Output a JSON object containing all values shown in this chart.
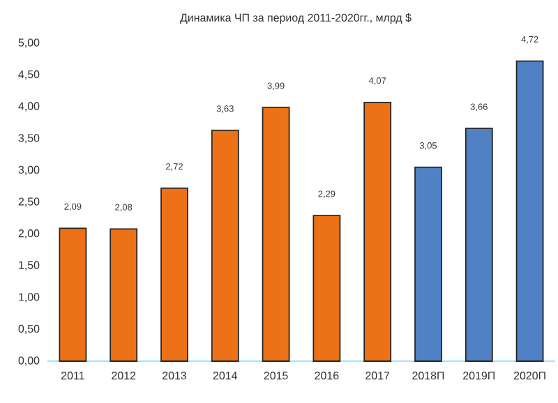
{
  "chart_data": {
    "type": "bar",
    "title": "Динамика ЧП за период 2011-2020гг., млрд $",
    "categories": [
      "2011",
      "2012",
      "2013",
      "2014",
      "2015",
      "2016",
      "2017",
      "2018П",
      "2019П",
      "2020П"
    ],
    "values": [
      2.09,
      2.08,
      2.72,
      3.63,
      3.99,
      2.29,
      4.07,
      3.05,
      3.66,
      4.72
    ],
    "value_labels": [
      "2,09",
      "2,08",
      "2,72",
      "3,63",
      "3,99",
      "2,29",
      "4,07",
      "3,05",
      "3,66",
      "4,72"
    ],
    "colors": [
      "#ed7117",
      "#ed7117",
      "#ed7117",
      "#ed7117",
      "#ed7117",
      "#ed7117",
      "#ed7117",
      "#4f81c4",
      "#4f81c4",
      "#4f81c4"
    ],
    "ylim": [
      0,
      5
    ],
    "yticks": [
      {
        "value": 0,
        "label": "0,00"
      },
      {
        "value": 0.5,
        "label": "0,50"
      },
      {
        "value": 1,
        "label": "1,00"
      },
      {
        "value": 1.5,
        "label": "1,50"
      },
      {
        "value": 2,
        "label": "2,00"
      },
      {
        "value": 2.5,
        "label": "2,50"
      },
      {
        "value": 3,
        "label": "3,00"
      },
      {
        "value": 3.5,
        "label": "3,50"
      },
      {
        "value": 4,
        "label": "4,00"
      },
      {
        "value": 4.5,
        "label": "4,50"
      },
      {
        "value": 5,
        "label": "5,00"
      }
    ],
    "grid": false
  }
}
